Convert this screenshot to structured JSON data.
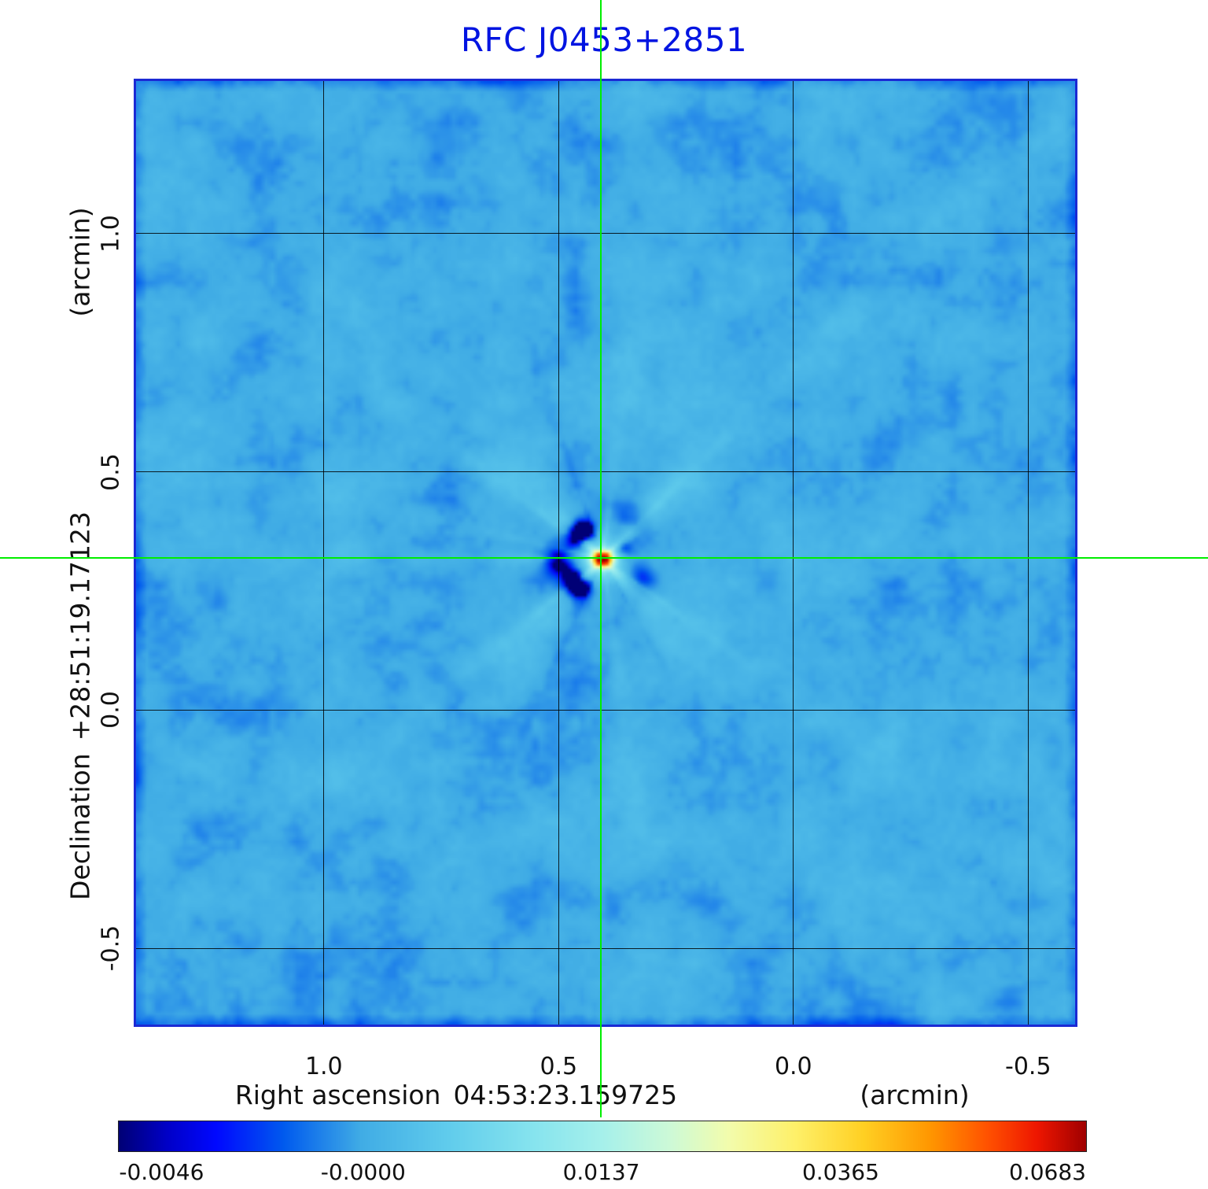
{
  "chart_data": {
    "type": "heatmap",
    "title": "RFC J0453+2851",
    "title_color": "#0014e1",
    "x": {
      "label": "Right ascension",
      "coordinate": "04:53:23.159725",
      "unit": "(arcmin)",
      "tick_labels": [
        "1.0",
        "0.5",
        "0.0",
        "-0.5"
      ],
      "tick_values": [
        1.0,
        0.5,
        0.0,
        -0.5
      ],
      "range": [
        1.4,
        -0.6
      ]
    },
    "y": {
      "label": "Declination",
      "coordinate": "+28:51:19.17123",
      "unit": "(arcmin)",
      "tick_labels": [
        "1.0",
        "0.5",
        "0.0",
        "-0.5"
      ],
      "tick_values": [
        1.0,
        0.5,
        0.0,
        -0.5
      ],
      "range": [
        1.32,
        -0.66
      ]
    },
    "grid": true,
    "background_value": 0.0,
    "source": {
      "ra_offset_arcmin": 0.41,
      "dec_offset_arcmin": 0.32,
      "peak_value": 0.0683
    },
    "crosshair": {
      "ra_offset_arcmin": 0.41,
      "dec_offset_arcmin": 0.32,
      "color": "#00ee00"
    },
    "colorbar": {
      "orientation": "horizontal",
      "scale": "sqrt",
      "vmin": -0.00475,
      "vmax": 0.06915,
      "tick_labels": [
        "-0.0046",
        "-0.0000",
        "0.0137",
        "0.0365",
        "0.0683"
      ],
      "tick_values": [
        -0.0046,
        0.0,
        0.0137,
        0.0365,
        0.0683
      ]
    }
  }
}
